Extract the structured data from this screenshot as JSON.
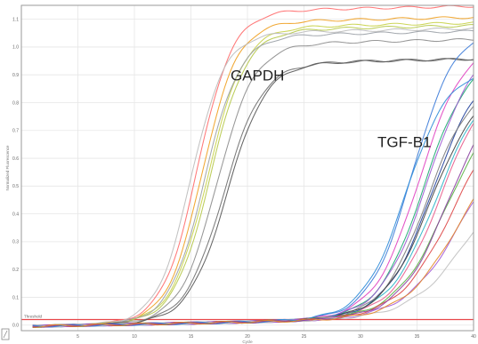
{
  "chart_data": {
    "type": "line",
    "title": "",
    "xlabel": "Cycle",
    "ylabel": "Normalized Fluorescence",
    "xlim": [
      0,
      40
    ],
    "ylim": [
      -0.02,
      1.15
    ],
    "x_ticks": [
      "5",
      "10",
      "15",
      "20",
      "25",
      "30",
      "35",
      "40"
    ],
    "y_ticks": [
      "0.0",
      "0.1",
      "0.2",
      "0.3",
      "0.4",
      "0.5",
      "0.6",
      "0.7",
      "0.8",
      "0.9",
      "1.0",
      "1.1"
    ],
    "threshold": {
      "label": "Threshold",
      "value": 0.02,
      "color": "#e8474a"
    },
    "grid": true,
    "annotations": [
      {
        "text": "GAPDH",
        "x": 18.5,
        "y": 0.88
      },
      {
        "text": "TGF-B1",
        "x": 31.5,
        "y": 0.64
      }
    ],
    "series_groups": [
      {
        "name": "GAPDH",
        "curves": [
          {
            "color": "#ff6a6a",
            "ct": 15.6,
            "plateau": 1.12,
            "slope": 1.55
          },
          {
            "color": "#f0a020",
            "ct": 16.0,
            "plateau": 1.08,
            "slope": 1.55
          },
          {
            "color": "#c8d248",
            "ct": 16.5,
            "plateau": 1.06,
            "slope": 1.6
          },
          {
            "color": "#b5c848",
            "ct": 16.7,
            "plateau": 1.05,
            "slope": 1.6
          },
          {
            "color": "#9aa0a6",
            "ct": 16.2,
            "plateau": 1.03,
            "slope": 1.55
          },
          {
            "color": "#8c8c8c",
            "ct": 17.3,
            "plateau": 1.0,
            "slope": 1.65
          },
          {
            "color": "#6e6e6e",
            "ct": 17.9,
            "plateau": 0.93,
            "slope": 1.7
          },
          {
            "color": "#555555",
            "ct": 18.2,
            "plateau": 0.93,
            "slope": 1.7
          },
          {
            "color": "#bbbbbb",
            "ct": 15.0,
            "plateau": 1.04,
            "slope": 1.5
          }
        ]
      },
      {
        "name": "TGF-B1",
        "curves": [
          {
            "color": "#3a7ad8",
            "ct": 34.6,
            "plateau": 1.05,
            "slope": 1.9
          },
          {
            "color": "#e040c0",
            "ct": 35.2,
            "plateau": 1.0,
            "slope": 2.0
          },
          {
            "color": "#19a870",
            "ct": 35.6,
            "plateau": 0.95,
            "slope": 2.0
          },
          {
            "color": "#9b59d0",
            "ct": 36.0,
            "plateau": 1.0,
            "slope": 2.1
          },
          {
            "color": "#1f3f9a",
            "ct": 36.4,
            "plateau": 0.92,
            "slope": 2.1
          },
          {
            "color": "#2bb5c8",
            "ct": 36.8,
            "plateau": 0.88,
            "slope": 2.2
          },
          {
            "color": "#e85a8a",
            "ct": 37.2,
            "plateau": 0.9,
            "slope": 2.2
          },
          {
            "color": "#7a7a7a",
            "ct": 35.9,
            "plateau": 0.86,
            "slope": 2.0
          },
          {
            "color": "#58b040",
            "ct": 37.6,
            "plateau": 0.8,
            "slope": 2.3
          },
          {
            "color": "#444444",
            "ct": 36.2,
            "plateau": 0.84,
            "slope": 2.1
          },
          {
            "color": "#d44",
            "ct": 38.2,
            "plateau": 0.78,
            "slope": 2.4
          },
          {
            "color": "#a25bd6",
            "ct": 39.0,
            "plateau": 0.7,
            "slope": 2.5
          },
          {
            "color": "#c0c0c0",
            "ct": 39.8,
            "plateau": 0.6,
            "slope": 2.6
          },
          {
            "color": "#2d8cd8",
            "ct": 34.0,
            "plateau": 0.9,
            "slope": 1.9
          },
          {
            "color": "#8a3fa0",
            "ct": 37.8,
            "plateau": 0.85,
            "slope": 2.2
          },
          {
            "color": "#e48a2a",
            "ct": 38.6,
            "plateau": 0.66,
            "slope": 2.4
          }
        ]
      }
    ]
  }
}
